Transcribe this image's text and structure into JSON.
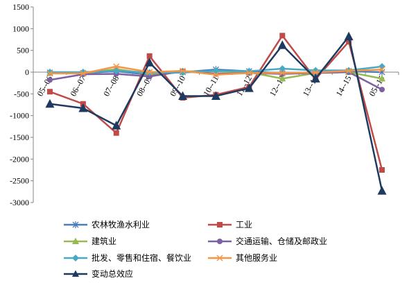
{
  "chart_data": {
    "type": "line",
    "title": "",
    "xlabel": "",
    "ylabel": "",
    "ylim": [
      -3000,
      1500
    ],
    "yticks": [
      1500,
      1000,
      500,
      0,
      -500,
      -1000,
      -1500,
      -2000,
      -2500,
      -3000
    ],
    "categories": [
      "05--06",
      "06--07",
      "07--08",
      "08--09",
      "09--10",
      "10--11",
      "11--12",
      "12--13",
      "13--14",
      "14--15",
      "05--15"
    ],
    "grid": false,
    "legend_position": "bottom",
    "series": [
      {
        "name": "农林牧渔水利业",
        "color": "#4a7ebb",
        "marker": "asterisk",
        "values": [
          -10,
          -20,
          20,
          -60,
          0,
          60,
          20,
          -30,
          0,
          20,
          0
        ]
      },
      {
        "name": "工业",
        "color": "#be4b48",
        "marker": "square",
        "values": [
          -450,
          -730,
          -1400,
          370,
          -590,
          -520,
          -340,
          840,
          -160,
          700,
          -2250
        ]
      },
      {
        "name": "建筑业",
        "color": "#98b954",
        "marker": "triangle",
        "values": [
          -20,
          -30,
          70,
          -40,
          20,
          10,
          0,
          -150,
          -20,
          0,
          -150
        ]
      },
      {
        "name": "交通运输、仓储及邮政业",
        "color": "#7d60a0",
        "marker": "circle",
        "values": [
          -180,
          -50,
          -40,
          -100,
          20,
          -40,
          -20,
          -40,
          -20,
          0,
          -400
        ]
      },
      {
        "name": "批发、零售和住宿、餐饮业",
        "color": "#46aac5",
        "marker": "diamond",
        "values": [
          0,
          0,
          30,
          -10,
          -10,
          30,
          20,
          80,
          40,
          40,
          130
        ]
      },
      {
        "name": "其他服务业",
        "color": "#f69546",
        "marker": "x",
        "values": [
          -30,
          -30,
          130,
          0,
          30,
          -60,
          -20,
          -20,
          -10,
          30,
          60
        ]
      },
      {
        "name": "变动总效应",
        "color": "#1f3a60",
        "marker": "triangle",
        "values": [
          -730,
          -830,
          -1230,
          220,
          -550,
          -550,
          -370,
          620,
          -150,
          820,
          -2730
        ]
      }
    ]
  }
}
